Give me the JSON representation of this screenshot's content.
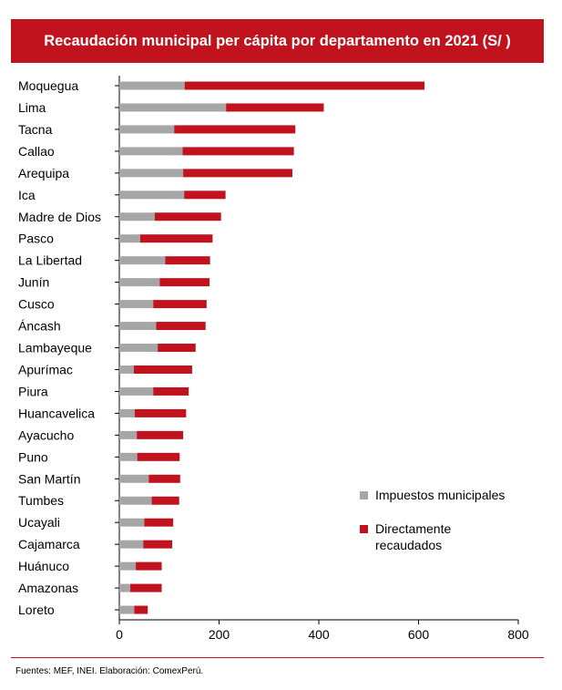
{
  "header": {
    "title": "Recaudación municipal per cápita por departamento en 2021 (S/ )"
  },
  "footer": {
    "source": "Fuentes: MEF, INEI. Elaboración: ComexPerú."
  },
  "colors": {
    "accent": "#c0131e",
    "impuestos": "#a6a6a6",
    "directos": "#c0131e"
  },
  "chart_data": {
    "type": "bar",
    "orientation": "horizontal",
    "stacked": true,
    "title": "Recaudación municipal per cápita por departamento en 2021 (S/ )",
    "xlabel": "",
    "ylabel": "",
    "xlim": [
      0,
      800
    ],
    "xticks": [
      0,
      200,
      400,
      600,
      800
    ],
    "grid": false,
    "legend_position": "right",
    "categories": [
      "Moquegua",
      "Lima",
      "Tacna",
      "Callao",
      "Arequipa",
      "Ica",
      "Madre de Dios",
      "Pasco",
      "La Libertad",
      "Junín",
      "Cusco",
      "Áncash",
      "Lambayeque",
      "Apurímac",
      "Piura",
      "Huancavelica",
      "Ayacucho",
      "Puno",
      "San Martín",
      "Tumbes",
      "Ucayali",
      "Cajamarca",
      "Huánuco",
      "Amazonas",
      "Loreto"
    ],
    "series": [
      {
        "name": "Impuestos municipales",
        "values": [
          131,
          214,
          110,
          127,
          128,
          130,
          71,
          42,
          92,
          81,
          68,
          74,
          77,
          29,
          68,
          31,
          35,
          36,
          59,
          65,
          50,
          48,
          33,
          22,
          30
        ]
      },
      {
        "name": "Directamente recaudados",
        "values": [
          481,
          196,
          243,
          223,
          219,
          83,
          133,
          145,
          90,
          100,
          107,
          99,
          76,
          117,
          71,
          103,
          93,
          85,
          63,
          55,
          58,
          58,
          52,
          63,
          27
        ]
      }
    ]
  }
}
